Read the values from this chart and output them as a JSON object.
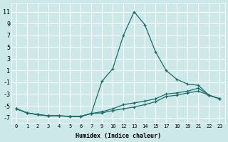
{
  "xlabel": "Humidex (Indice chaleur)",
  "bg_color": "#cce8e8",
  "grid_color": "#ffffff",
  "line_color": "#1a6b6b",
  "xlabels": [
    "0",
    "1",
    "2",
    "3",
    "4",
    "5",
    "6",
    "7",
    "9",
    "10",
    "12",
    "13",
    "14",
    "15",
    "17",
    "18",
    "19",
    "21",
    "22",
    "23"
  ],
  "yticks": [
    -7,
    -5,
    -3,
    -1,
    1,
    3,
    5,
    7,
    9,
    11
  ],
  "ylim": [
    -8.0,
    12.5
  ],
  "series": [
    {
      "y": [
        -5.5,
        -6.2,
        -6.5,
        -6.7,
        -6.7,
        -6.8,
        -6.8,
        -6.3,
        -0.8,
        1.3,
        7.0,
        11.0,
        8.8,
        4.2,
        1.0,
        -0.5,
        -1.3,
        -1.5,
        -3.2,
        -3.8
      ]
    },
    {
      "y": [
        -5.5,
        -6.2,
        -6.5,
        -6.7,
        -6.7,
        -6.8,
        -6.8,
        -6.3,
        -6.0,
        -5.5,
        -4.8,
        -4.5,
        -4.2,
        -3.8,
        -3.0,
        -2.8,
        -2.5,
        -2.0,
        -3.2,
        -3.8
      ]
    },
    {
      "y": [
        -5.5,
        -6.2,
        -6.5,
        -6.7,
        -6.7,
        -6.8,
        -6.8,
        -6.3,
        -6.2,
        -5.8,
        -5.5,
        -5.2,
        -4.8,
        -4.3,
        -3.4,
        -3.2,
        -2.8,
        -2.5,
        -3.2,
        -3.8
      ]
    }
  ]
}
